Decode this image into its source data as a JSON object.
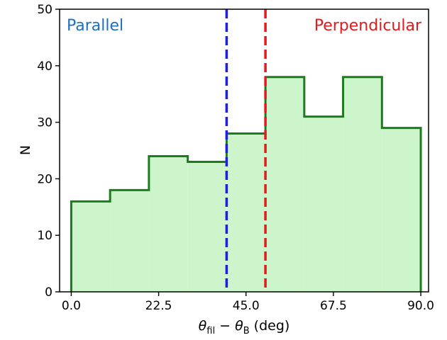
{
  "chart_data": {
    "type": "bar",
    "histogram": true,
    "bin_edges": [
      0,
      10,
      20,
      30,
      40,
      50,
      60,
      70,
      80,
      90
    ],
    "values": [
      16,
      18,
      24,
      23,
      28,
      38,
      31,
      38,
      29
    ],
    "fill_color": "#ccf5cc",
    "edge_color": "#1a7d1a",
    "xlabel": "θfil − θB (deg)",
    "xlabel_parts": {
      "theta": "θ",
      "sub_fil": "fil",
      "minus": " − ",
      "sub_B": "B",
      "unit": " (deg)"
    },
    "ylabel": "N",
    "xlim": [
      -3,
      92
    ],
    "ylim": [
      0,
      50
    ],
    "xticks": [
      0,
      22.5,
      45,
      67.5,
      90
    ],
    "xtick_labels": [
      "0.0",
      "22.5",
      "45.0",
      "67.5",
      "90.0"
    ],
    "yticks": [
      0,
      10,
      20,
      30,
      40,
      50
    ],
    "ytick_labels": [
      "0",
      "10",
      "20",
      "30",
      "40",
      "50"
    ],
    "grid": false,
    "reference_lines": [
      {
        "x": 40,
        "color": "#1f1fe0",
        "style": "dashed"
      },
      {
        "x": 50,
        "color": "#e41a1c",
        "style": "dashed"
      }
    ],
    "annotations": [
      {
        "text": "Parallel",
        "color": "#1f6fbf",
        "position": "top-left"
      },
      {
        "text": "Perpendicular",
        "color": "#e41a1c",
        "position": "top-right"
      }
    ]
  }
}
